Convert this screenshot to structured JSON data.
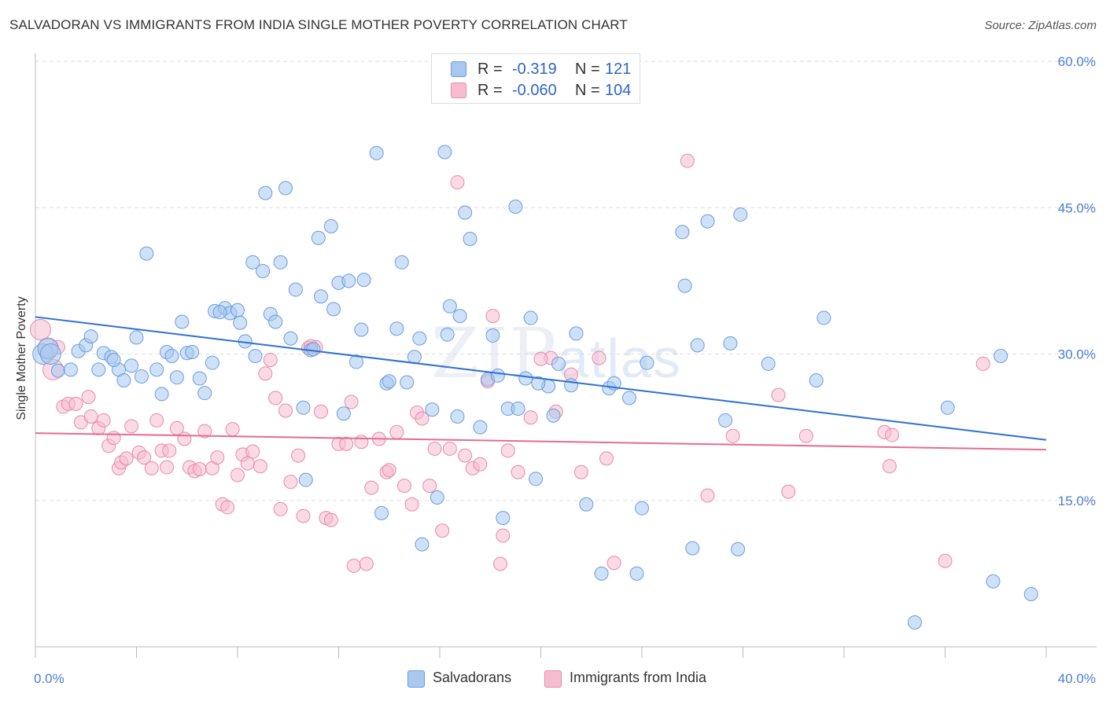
{
  "header": {
    "title": "SALVADORAN VS IMMIGRANTS FROM INDIA SINGLE MOTHER POVERTY CORRELATION CHART",
    "source": "Source: ZipAtlas.com"
  },
  "watermark": {
    "zip": "ZIP",
    "atlas": "atlas"
  },
  "legend": {
    "r_label": "R =",
    "n_label": "N =",
    "series": [
      {
        "r": "-0.319",
        "n": "121"
      },
      {
        "r": "-0.060",
        "n": "104"
      }
    ]
  },
  "bottom_legend": [
    "Salvadorans",
    "Immigrants from India"
  ],
  "colors": {
    "blue_fill": "#a8c8f0",
    "blue_stroke": "#6a9de0",
    "blue_line": "#2f6fd6",
    "pink_fill": "#f6bcd0",
    "pink_stroke": "#e88aab",
    "pink_line": "#e56b94",
    "grid": "#dddddd",
    "tick_text": "#4a7fd4"
  },
  "chart_data": {
    "type": "scatter",
    "title": "SALVADORAN VS IMMIGRANTS FROM INDIA SINGLE MOTHER POVERTY CORRELATION CHART",
    "ylabel": "Single Mother Poverty",
    "xlabel": "",
    "xlim": [
      0,
      40
    ],
    "ylim": [
      0,
      60
    ],
    "x_tick_labels": [
      "0.0%",
      "40.0%"
    ],
    "y_ticks": [
      15,
      30,
      45,
      60
    ],
    "y_tick_labels": [
      "15.0%",
      "30.0%",
      "45.0%",
      "60.0%"
    ],
    "grid": true,
    "series": [
      {
        "name": "Salvadorans",
        "color": "#a8c8f0",
        "trend": {
          "x": [
            0,
            40
          ],
          "y": [
            33.8,
            21.2
          ]
        },
        "points": [
          [
            0.3,
            30.0
          ],
          [
            0.5,
            30.6
          ],
          [
            0.6,
            30.0
          ],
          [
            0.9,
            28.3
          ],
          [
            1.4,
            28.4
          ],
          [
            1.7,
            30.3
          ],
          [
            2.0,
            30.9
          ],
          [
            2.2,
            31.8
          ],
          [
            2.5,
            28.4
          ],
          [
            2.7,
            30.1
          ],
          [
            3.0,
            29.7
          ],
          [
            3.3,
            28.4
          ],
          [
            3.5,
            27.3
          ],
          [
            3.8,
            28.8
          ],
          [
            4.0,
            31.7
          ],
          [
            4.2,
            27.7
          ],
          [
            4.4,
            40.3
          ],
          [
            4.8,
            28.4
          ],
          [
            5.0,
            25.9
          ],
          [
            5.2,
            30.2
          ],
          [
            5.4,
            29.8
          ],
          [
            5.6,
            27.6
          ],
          [
            5.8,
            33.3
          ],
          [
            6.0,
            30.1
          ],
          [
            6.2,
            30.2
          ],
          [
            6.5,
            27.5
          ],
          [
            6.7,
            26.0
          ],
          [
            7.0,
            29.1
          ],
          [
            7.1,
            34.4
          ],
          [
            7.5,
            34.7
          ],
          [
            7.7,
            34.2
          ],
          [
            8.0,
            34.5
          ],
          [
            8.1,
            33.2
          ],
          [
            8.3,
            31.3
          ],
          [
            8.6,
            39.4
          ],
          [
            8.7,
            29.8
          ],
          [
            9.0,
            38.5
          ],
          [
            9.1,
            46.5
          ],
          [
            9.3,
            34.1
          ],
          [
            9.5,
            33.3
          ],
          [
            9.7,
            39.4
          ],
          [
            9.9,
            47.0
          ],
          [
            10.1,
            31.6
          ],
          [
            10.3,
            36.6
          ],
          [
            10.6,
            24.5
          ],
          [
            10.7,
            17.1
          ],
          [
            10.9,
            30.4
          ],
          [
            11.2,
            41.9
          ],
          [
            11.3,
            35.9
          ],
          [
            11.7,
            43.1
          ],
          [
            11.8,
            34.6
          ],
          [
            12.0,
            37.3
          ],
          [
            12.2,
            23.9
          ],
          [
            12.4,
            37.5
          ],
          [
            12.7,
            29.2
          ],
          [
            12.9,
            32.5
          ],
          [
            13.0,
            37.6
          ],
          [
            13.5,
            50.6
          ],
          [
            13.7,
            13.7
          ],
          [
            13.9,
            27.0
          ],
          [
            14.0,
            27.2
          ],
          [
            14.3,
            32.6
          ],
          [
            14.5,
            39.4
          ],
          [
            14.7,
            27.1
          ],
          [
            15.0,
            29.7
          ],
          [
            15.2,
            31.6
          ],
          [
            15.3,
            10.5
          ],
          [
            15.7,
            24.3
          ],
          [
            15.9,
            15.3
          ],
          [
            16.2,
            50.7
          ],
          [
            16.3,
            32.0
          ],
          [
            16.4,
            34.9
          ],
          [
            16.7,
            23.6
          ],
          [
            16.8,
            33.9
          ],
          [
            17.0,
            44.5
          ],
          [
            17.2,
            41.8
          ],
          [
            17.6,
            22.5
          ],
          [
            17.9,
            27.4
          ],
          [
            18.1,
            31.9
          ],
          [
            18.3,
            27.8
          ],
          [
            18.5,
            13.2
          ],
          [
            18.7,
            24.4
          ],
          [
            19.0,
            45.1
          ],
          [
            19.1,
            24.4
          ],
          [
            19.4,
            27.5
          ],
          [
            19.6,
            33.7
          ],
          [
            19.8,
            17.2
          ],
          [
            20.3,
            26.7
          ],
          [
            20.5,
            23.7
          ],
          [
            20.7,
            29.0
          ],
          [
            21.2,
            26.8
          ],
          [
            21.4,
            32.1
          ],
          [
            21.8,
            14.6
          ],
          [
            22.4,
            7.5
          ],
          [
            22.7,
            26.5
          ],
          [
            22.9,
            27.0
          ],
          [
            23.5,
            25.5
          ],
          [
            23.8,
            7.5
          ],
          [
            24.0,
            14.2
          ],
          [
            24.2,
            29.1
          ],
          [
            25.6,
            42.5
          ],
          [
            25.7,
            37.0
          ],
          [
            26.0,
            10.1
          ],
          [
            26.2,
            30.9
          ],
          [
            26.6,
            43.6
          ],
          [
            27.5,
            31.1
          ],
          [
            27.3,
            23.2
          ],
          [
            27.8,
            10.0
          ],
          [
            27.9,
            44.3
          ],
          [
            30.9,
            27.3
          ],
          [
            31.2,
            33.7
          ],
          [
            34.8,
            2.5
          ],
          [
            36.1,
            24.5
          ],
          [
            37.9,
            6.7
          ],
          [
            38.2,
            29.8
          ],
          [
            39.4,
            5.4
          ],
          [
            29.0,
            29.0
          ],
          [
            19.9,
            27.0
          ],
          [
            11.0,
            30.5
          ],
          [
            7.3,
            34.3
          ],
          [
            3.1,
            29.4
          ]
        ]
      },
      {
        "name": "Immigrants from India",
        "color": "#f6bcd0",
        "trend": {
          "x": [
            0,
            40
          ],
          "y": [
            21.9,
            20.2
          ]
        },
        "points": [
          [
            0.2,
            32.5
          ],
          [
            0.5,
            30.5
          ],
          [
            0.7,
            28.4
          ],
          [
            0.9,
            30.7
          ],
          [
            1.1,
            24.6
          ],
          [
            1.3,
            24.9
          ],
          [
            1.6,
            24.9
          ],
          [
            1.8,
            23.0
          ],
          [
            2.1,
            25.6
          ],
          [
            2.2,
            23.6
          ],
          [
            2.5,
            22.4
          ],
          [
            2.7,
            23.2
          ],
          [
            2.9,
            20.6
          ],
          [
            3.1,
            21.4
          ],
          [
            3.3,
            18.3
          ],
          [
            3.4,
            18.9
          ],
          [
            3.6,
            19.3
          ],
          [
            3.8,
            22.6
          ],
          [
            4.1,
            19.9
          ],
          [
            4.3,
            19.4
          ],
          [
            4.6,
            18.3
          ],
          [
            4.8,
            23.2
          ],
          [
            5.0,
            20.1
          ],
          [
            5.2,
            18.4
          ],
          [
            5.3,
            20.1
          ],
          [
            5.6,
            22.4
          ],
          [
            5.9,
            21.3
          ],
          [
            6.1,
            18.4
          ],
          [
            6.3,
            18.0
          ],
          [
            6.5,
            18.2
          ],
          [
            6.7,
            22.1
          ],
          [
            7.0,
            18.3
          ],
          [
            7.2,
            19.4
          ],
          [
            7.4,
            14.6
          ],
          [
            7.6,
            14.3
          ],
          [
            7.8,
            22.3
          ],
          [
            8.0,
            17.6
          ],
          [
            8.2,
            19.7
          ],
          [
            8.4,
            18.8
          ],
          [
            8.6,
            20.0
          ],
          [
            8.9,
            18.5
          ],
          [
            9.1,
            28.0
          ],
          [
            9.3,
            29.4
          ],
          [
            9.5,
            25.5
          ],
          [
            9.7,
            14.1
          ],
          [
            9.9,
            24.2
          ],
          [
            10.1,
            16.9
          ],
          [
            10.4,
            19.6
          ],
          [
            10.6,
            13.4
          ],
          [
            10.8,
            30.6
          ],
          [
            11.1,
            30.7
          ],
          [
            11.3,
            24.1
          ],
          [
            11.5,
            13.2
          ],
          [
            11.7,
            13.0
          ],
          [
            12.0,
            20.8
          ],
          [
            12.3,
            20.8
          ],
          [
            12.5,
            25.1
          ],
          [
            12.6,
            8.3
          ],
          [
            12.9,
            21.0
          ],
          [
            13.1,
            8.5
          ],
          [
            13.3,
            16.3
          ],
          [
            13.6,
            21.3
          ],
          [
            13.9,
            17.9
          ],
          [
            14.0,
            18.1
          ],
          [
            14.3,
            22.0
          ],
          [
            14.6,
            16.5
          ],
          [
            14.9,
            14.6
          ],
          [
            15.1,
            24.0
          ],
          [
            15.3,
            23.4
          ],
          [
            15.6,
            16.5
          ],
          [
            15.8,
            20.3
          ],
          [
            16.1,
            11.9
          ],
          [
            16.4,
            20.3
          ],
          [
            16.7,
            47.6
          ],
          [
            17.0,
            19.6
          ],
          [
            17.3,
            18.3
          ],
          [
            17.6,
            18.7
          ],
          [
            17.9,
            27.2
          ],
          [
            18.1,
            33.9
          ],
          [
            18.4,
            8.5
          ],
          [
            18.5,
            11.4
          ],
          [
            18.7,
            20.1
          ],
          [
            19.1,
            17.9
          ],
          [
            19.6,
            23.5
          ],
          [
            20.4,
            29.6
          ],
          [
            20.6,
            24.1
          ],
          [
            21.2,
            27.9
          ],
          [
            21.6,
            17.9
          ],
          [
            22.3,
            29.6
          ],
          [
            22.6,
            19.3
          ],
          [
            22.9,
            8.6
          ],
          [
            25.8,
            49.8
          ],
          [
            26.6,
            15.5
          ],
          [
            27.6,
            21.6
          ],
          [
            29.4,
            25.8
          ],
          [
            29.8,
            15.9
          ],
          [
            30.5,
            21.6
          ],
          [
            33.6,
            22.0
          ],
          [
            33.9,
            21.7
          ],
          [
            33.8,
            18.5
          ],
          [
            36.0,
            8.8
          ],
          [
            37.5,
            29.0
          ],
          [
            20.0,
            29.5
          ],
          [
            10.9,
            30.8
          ]
        ]
      }
    ]
  }
}
